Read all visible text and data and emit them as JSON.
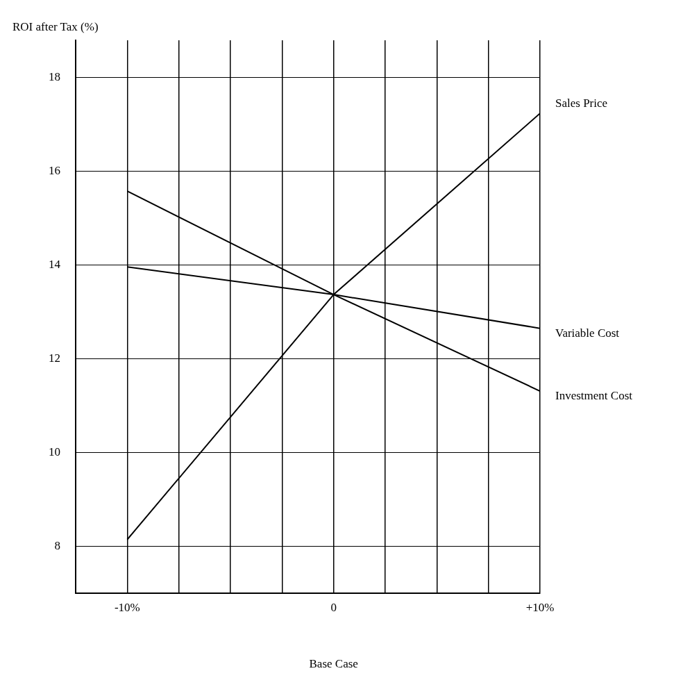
{
  "chart_data": {
    "type": "line",
    "xlabel": "Base Case",
    "ylabel": "ROI after Tax (%)",
    "x": [
      -10,
      0,
      10
    ],
    "series": [
      {
        "name": "Sales Price",
        "color": "#000000",
        "values": [
          8.14,
          13.37,
          17.24
        ]
      },
      {
        "name": "Variable Cost",
        "color": "#000000",
        "values": [
          13.96,
          13.37,
          12.65
        ]
      },
      {
        "name": "Investment Cost",
        "color": "#000000",
        "values": [
          15.58,
          13.37,
          11.31
        ]
      }
    ],
    "xlim": [
      -12.5,
      10
    ],
    "xticks": [
      {
        "value": -12.5,
        "label": null
      },
      {
        "value": -10,
        "label": "-10%"
      },
      {
        "value": -7.5,
        "label": null
      },
      {
        "value": -5,
        "label": null
      },
      {
        "value": -2.5,
        "label": null
      },
      0,
      {
        "value": 2.5,
        "label": null
      },
      {
        "value": 5,
        "label": null
      },
      {
        "value": 7.5,
        "label": null
      },
      {
        "value": 10,
        "label": "+10%"
      }
    ],
    "ylim": [
      7,
      18.8
    ],
    "yticks": [
      8,
      10,
      12,
      14,
      16,
      18
    ],
    "grid": true,
    "legend": false,
    "marker": "none",
    "line_style": "solid"
  }
}
